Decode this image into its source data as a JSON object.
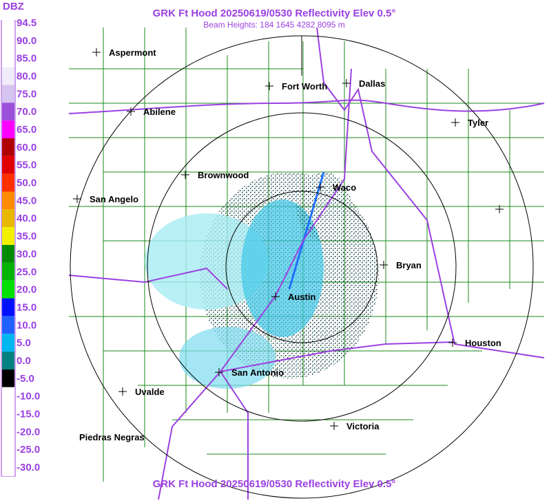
{
  "header": {
    "title": "GRK Ft Hood 20250619/0530 Reflectivity Elev 0.5°",
    "subtitle": "Beam Heights: 184 1645 4282 8095 m"
  },
  "footer": {
    "title": "GRK Ft Hood 20250619/0530 Reflectivity Elev 0.5°"
  },
  "legend": {
    "unit": "DBZ",
    "levels": [
      {
        "label": "94.5",
        "color": "#ffffff"
      },
      {
        "label": "90.0",
        "color": "#ffffff"
      },
      {
        "label": "85.0",
        "color": "#ffffff"
      },
      {
        "label": "80.0",
        "color": "#f2ecfa"
      },
      {
        "label": "75.0",
        "color": "#d6c4f0"
      },
      {
        "label": "70.0",
        "color": "#9a50d8"
      },
      {
        "label": "65.0",
        "color": "#ff00ff"
      },
      {
        "label": "60.0",
        "color": "#b00000"
      },
      {
        "label": "55.0",
        "color": "#e00000"
      },
      {
        "label": "50.0",
        "color": "#ff3000"
      },
      {
        "label": "45.0",
        "color": "#ff8c00"
      },
      {
        "label": "40.0",
        "color": "#e8b800"
      },
      {
        "label": "35.0",
        "color": "#f0f000"
      },
      {
        "label": "30.0",
        "color": "#008a00"
      },
      {
        "label": "25.0",
        "color": "#00b400"
      },
      {
        "label": "20.0",
        "color": "#00e000"
      },
      {
        "label": "15.0",
        "color": "#0010ff"
      },
      {
        "label": "10.0",
        "color": "#2060ff"
      },
      {
        "label": "5.0",
        "color": "#00b8f0"
      },
      {
        "label": "0.0",
        "color": "#008080"
      },
      {
        "label": "-5.0",
        "color": "#000000"
      },
      {
        "label": "-10.0",
        "color": "#ffffff"
      },
      {
        "label": "-15.0",
        "color": "#ffffff"
      },
      {
        "label": "-20.0",
        "color": "#ffffff"
      },
      {
        "label": "-25.0",
        "color": "#ffffff"
      },
      {
        "label": "-30.0",
        "color": "#ffffff"
      }
    ]
  },
  "cities": [
    {
      "name": "Aspermont"
    },
    {
      "name": "Fort Worth"
    },
    {
      "name": "Dallas"
    },
    {
      "name": "Abilene"
    },
    {
      "name": "Tyler"
    },
    {
      "name": "Brownwood"
    },
    {
      "name": "Waco"
    },
    {
      "name": "San Angelo"
    },
    {
      "name": "Bryan"
    },
    {
      "name": "Austin"
    },
    {
      "name": "Houston"
    },
    {
      "name": "San Antonio"
    },
    {
      "name": "Uvalde"
    },
    {
      "name": "Victoria"
    },
    {
      "name": "Piedras Negras"
    }
  ]
}
